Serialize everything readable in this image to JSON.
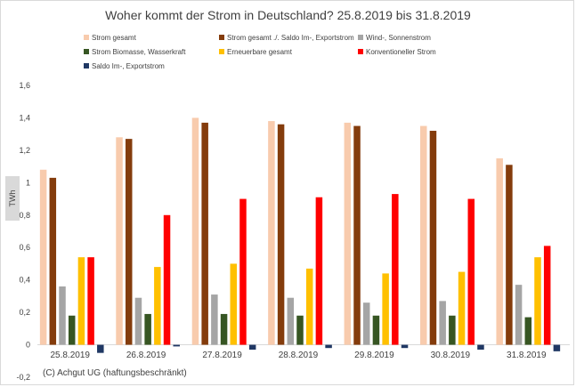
{
  "footer": "(C) Achgut UG (haftungsbeschränkt)",
  "chart_data": {
    "type": "bar",
    "title": "Woher kommt der Strom in Deutschland? 25.8.2019 bis 31.8.2019",
    "ylabel": "TWh",
    "xlabel": "",
    "ylim": [
      -0.2,
      1.6
    ],
    "yticks": [
      "-0,2",
      "0",
      "0,2",
      "0,4",
      "0,6",
      "0,8",
      "1",
      "1,2",
      "1,4",
      "1,6"
    ],
    "grid": false,
    "legend_position": "top",
    "categories": [
      "25.8.2019",
      "26.8.2019",
      "27.8.2019",
      "28.8.2019",
      "29.8.2019",
      "30.8.2019",
      "31.8.2019"
    ],
    "series": [
      {
        "name": "Strom gesamt",
        "color": "#f8cbad",
        "values": [
          1.08,
          1.28,
          1.4,
          1.38,
          1.37,
          1.35,
          1.15
        ]
      },
      {
        "name": "Strom gesamt ./. Saldo Im-, Exportstrom",
        "color": "#843c0c",
        "values": [
          1.03,
          1.27,
          1.37,
          1.36,
          1.35,
          1.32,
          1.11
        ]
      },
      {
        "name": "Wind-, Sonnenstrom",
        "color": "#a5a5a5",
        "values": [
          0.36,
          0.29,
          0.31,
          0.29,
          0.26,
          0.27,
          0.37
        ]
      },
      {
        "name": "Strom Biomasse, Wasserkraft",
        "color": "#375623",
        "values": [
          0.18,
          0.19,
          0.19,
          0.18,
          0.18,
          0.18,
          0.17
        ]
      },
      {
        "name": "Erneuerbare gesamt",
        "color": "#ffc000",
        "values": [
          0.54,
          0.48,
          0.5,
          0.47,
          0.44,
          0.45,
          0.54
        ]
      },
      {
        "name": "Konventioneller Strom",
        "color": "#ff0000",
        "values": [
          0.54,
          0.8,
          0.9,
          0.91,
          0.93,
          0.9,
          0.61
        ]
      },
      {
        "name": "Saldo Im-, Exportstrom",
        "color": "#203864",
        "values": [
          -0.05,
          -0.01,
          -0.03,
          -0.02,
          -0.02,
          -0.03,
          -0.04
        ]
      }
    ]
  }
}
